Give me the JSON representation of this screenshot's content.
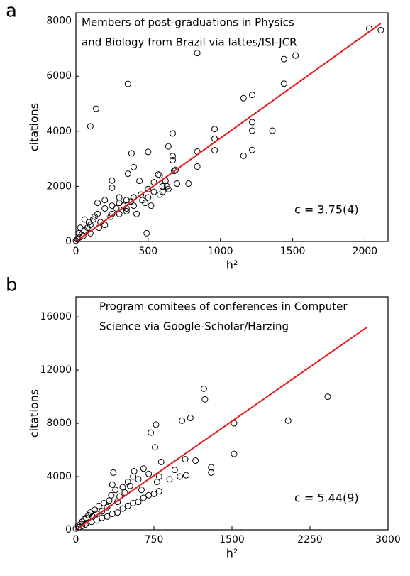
{
  "chart_data": [
    {
      "type": "scatter",
      "panel_label": "a",
      "annotation": [
        "Members of post-graduations in Physics",
        "and Biology from Brazil via lattes/ISI-JCR"
      ],
      "fit_label": "c = 3.75(4)",
      "x_label": "h²",
      "y_label": "citations",
      "xlim": [
        0,
        2160
      ],
      "ylim": [
        0,
        8300
      ],
      "xticks": [
        0,
        500,
        1000,
        1500,
        2000
      ],
      "yticks": [
        0,
        2000,
        4000,
        6000,
        8000
      ],
      "series": [
        {
          "color": "#000000",
          "x": [
            100,
            140,
            360,
            385,
            500,
            640,
            670,
            840,
            840,
            840,
            960,
            960,
            960,
            1160,
            1160,
            1220,
            1220,
            1220,
            1220,
            1360,
            1440,
            1440,
            1520,
            2030,
            2110,
            490,
            780,
            570,
            670,
            670,
            250,
            360,
            400,
            250,
            440,
            540,
            580,
            620,
            680,
            690,
            630,
            600,
            500,
            450,
            400,
            350,
            300,
            250,
            200,
            150,
            150,
            120,
            100,
            80,
            60,
            40,
            25,
            10,
            0,
            60,
            90,
            130,
            170,
            200,
            250,
            300,
            350,
            400,
            460,
            500,
            540,
            600,
            200,
            300,
            350,
            420,
            480,
            520,
            580,
            640,
            700,
            160,
            100,
            240,
            280,
            330,
            380,
            50,
            20,
            30
          ],
          "values": [
            4180,
            4820,
            5720,
            3200,
            3250,
            3450,
            3920,
            6840,
            3260,
            2720,
            4080,
            3730,
            3310,
            5200,
            3110,
            5320,
            4330,
            4020,
            3320,
            4020,
            6620,
            5730,
            6750,
            7730,
            7670,
            300,
            2100,
            2430,
            3100,
            2950,
            2210,
            2460,
            2700,
            1950,
            2200,
            2150,
            2400,
            2200,
            2560,
            2600,
            2000,
            1800,
            1900,
            1700,
            1600,
            1500,
            1400,
            1300,
            1200,
            1400,
            1000,
            800,
            600,
            500,
            400,
            250,
            150,
            80,
            30,
            800,
            700,
            900,
            700,
            600,
            1000,
            1000,
            1200,
            1300,
            1500,
            1600,
            1800,
            2000,
            1500,
            1600,
            1100,
            1000,
            1400,
            1300,
            1700,
            1900,
            2100,
            500,
            300,
            900,
            1200,
            1300,
            1450,
            200,
            300,
            500
          ]
        }
      ],
      "fit": {
        "color": "#e41a1c",
        "x": [
          0,
          2110
        ],
        "values": [
          0,
          7912
        ]
      }
    },
    {
      "type": "scatter",
      "panel_label": "b",
      "annotation": [
        "Program comitees of conferences in Computer",
        "Science via Google-Scholar/Harzing"
      ],
      "fit_label": "c = 5.44(9)",
      "x_label": "h²",
      "y_label": "citations",
      "xlim": [
        0,
        3000
      ],
      "ylim": [
        0,
        17500
      ],
      "xticks": [
        0,
        750,
        1500,
        2250,
        3000
      ],
      "yticks": [
        0,
        4000,
        8000,
        12000,
        16000
      ],
      "series": [
        {
          "color": "#000000",
          "x": [
            0,
            20,
            40,
            60,
            80,
            100,
            120,
            140,
            160,
            180,
            200,
            220,
            250,
            270,
            300,
            320,
            340,
            350,
            360,
            380,
            400,
            420,
            450,
            470,
            500,
            520,
            550,
            560,
            600,
            630,
            650,
            700,
            720,
            760,
            770,
            780,
            800,
            820,
            900,
            950,
            1000,
            1020,
            1050,
            1060,
            1100,
            1150,
            1230,
            1240,
            1300,
            1300,
            1520,
            1520,
            2040,
            2420,
            100,
            200,
            300,
            400,
            500,
            600,
            700,
            800,
            150,
            250,
            350,
            450,
            550,
            650,
            750,
            30,
            60,
            90
          ],
          "values": [
            100,
            300,
            400,
            600,
            800,
            900,
            1100,
            1300,
            1000,
            1500,
            1200,
            1800,
            1400,
            2000,
            1700,
            2200,
            2600,
            3400,
            4300,
            3000,
            2100,
            2500,
            3200,
            2800,
            3600,
            3300,
            4000,
            4400,
            3800,
            3000,
            4600,
            4200,
            7300,
            6200,
            7900,
            3600,
            4000,
            5100,
            3800,
            4500,
            4000,
            8200,
            5300,
            4100,
            8400,
            5200,
            10600,
            9800,
            4700,
            4300,
            8000,
            5700,
            8200,
            10000,
            500,
            700,
            1000,
            1300,
            1800,
            2100,
            2600,
            2900,
            600,
            900,
            1200,
            1600,
            2000,
            2400,
            2700,
            200,
            300,
            400
          ]
        }
      ],
      "fit": {
        "color": "#e41a1c",
        "x": [
          0,
          2800
        ],
        "values": [
          0,
          15232
        ]
      }
    }
  ]
}
